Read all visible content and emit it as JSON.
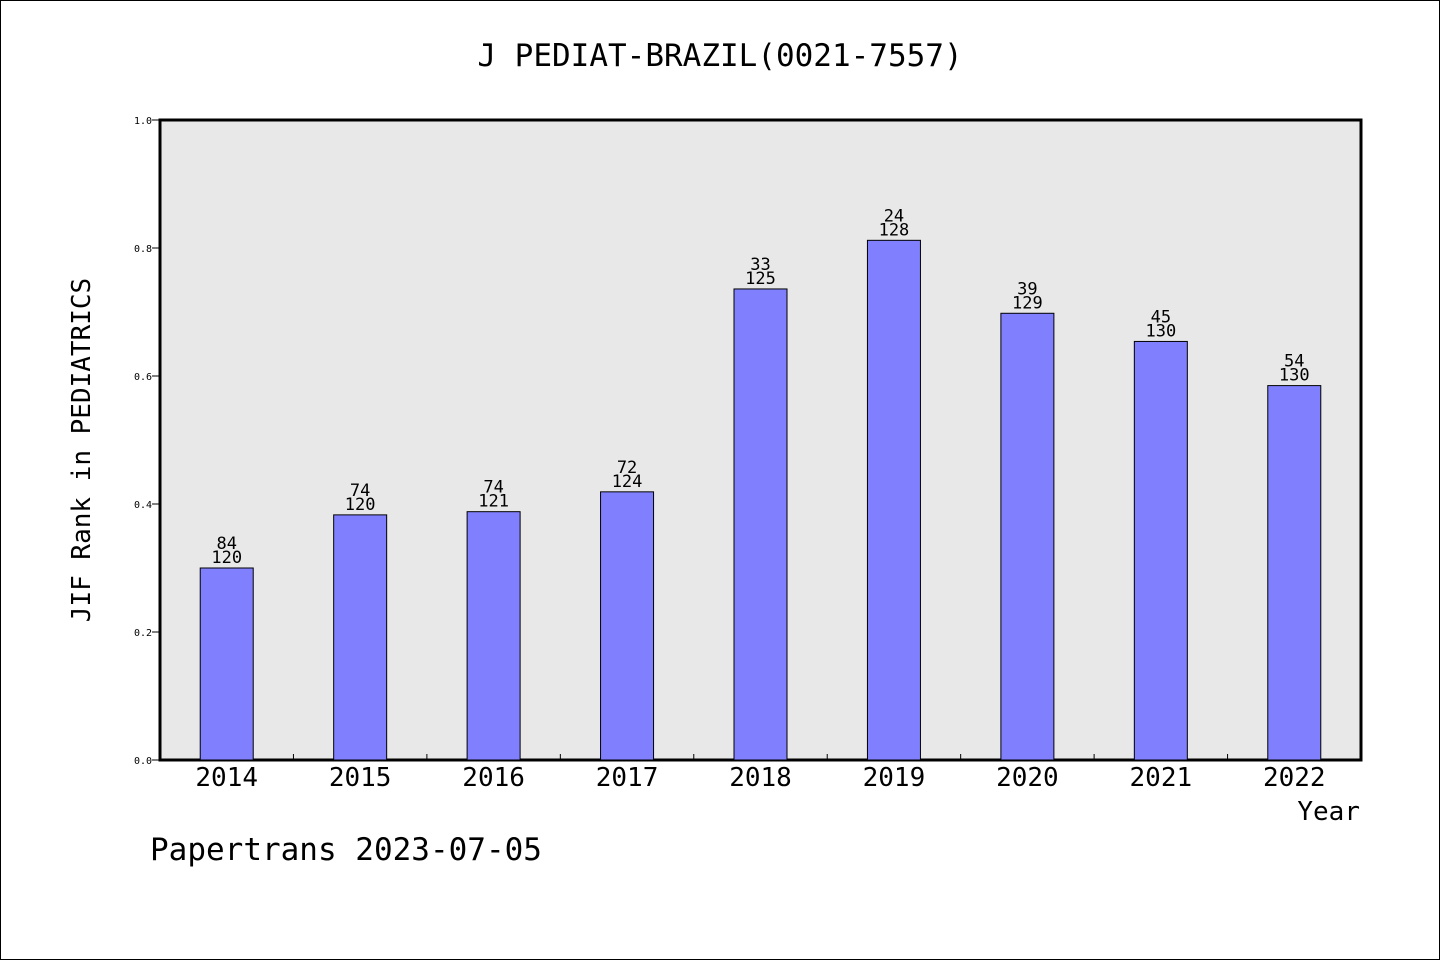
{
  "chart_data": {
    "type": "bar",
    "title": "J PEDIAT-BRAZIL(0021-7557)",
    "xlabel": "Year",
    "ylabel": "JIF Rank in PEDIATRICS",
    "ylim": [
      0,
      1.0
    ],
    "yticks": [
      "0.0",
      "0.2",
      "0.4",
      "0.6",
      "0.8",
      "1.0"
    ],
    "grid": false,
    "categories": [
      "2014",
      "2015",
      "2016",
      "2017",
      "2018",
      "2019",
      "2020",
      "2021",
      "2022"
    ],
    "values": [
      0.3,
      0.383,
      0.388,
      0.419,
      0.736,
      0.812,
      0.698,
      0.654,
      0.585
    ],
    "labels_top": [
      "84",
      "74",
      "74",
      "72",
      "33",
      "24",
      "39",
      "45",
      "54"
    ],
    "labels_bottom": [
      "120",
      "120",
      "121",
      "124",
      "125",
      "128",
      "129",
      "130",
      "130"
    ],
    "colors": {
      "bar": "#8080ff",
      "plot_bg": "#e8e8e8"
    }
  },
  "footer": {
    "note": "Papertrans 2023-07-05"
  }
}
